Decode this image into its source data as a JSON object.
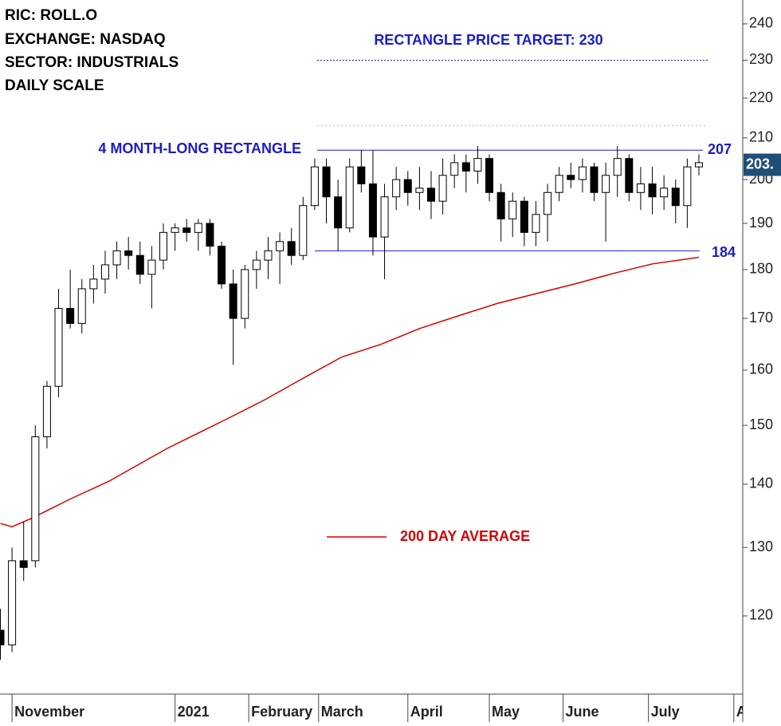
{
  "chart_data": {
    "type": "candlestick",
    "title_lines": [
      "RIC: ROLL.O",
      "EXCHANGE: NASDAQ",
      "SECTOR: INDUSTRIALS",
      "DAILY SCALE"
    ],
    "log_scale": true,
    "ylim": [
      109.5,
      246.8
    ],
    "yticks": [
      120,
      130,
      140,
      150,
      160,
      170,
      180,
      190,
      200,
      210,
      220,
      230,
      240
    ],
    "xlim": [
      -3.1,
      188.3
    ],
    "xticks": [
      {
        "value": 0,
        "label": "November"
      },
      {
        "value": 42,
        "label": "2021"
      },
      {
        "value": 61,
        "label": "February"
      },
      {
        "value": 79,
        "label": "March"
      },
      {
        "value": 102,
        "label": "April"
      },
      {
        "value": 123,
        "label": "May"
      },
      {
        "value": 142,
        "label": "June"
      },
      {
        "value": 164,
        "label": "July"
      },
      {
        "value": 186,
        "label": "Au"
      }
    ],
    "up_color": "#ffffff",
    "down_color": "#000000",
    "candles": {
      "x": [
        -3,
        0,
        3,
        6,
        9,
        12,
        15,
        18,
        21,
        24,
        27,
        30,
        33,
        36,
        39,
        42,
        45,
        48,
        51,
        54,
        57,
        60,
        63,
        66,
        69,
        72,
        75,
        78,
        81,
        84,
        87,
        90,
        93,
        96,
        99,
        102,
        105,
        108,
        111,
        114,
        117,
        120,
        123,
        126,
        129,
        132,
        135,
        138,
        141,
        144,
        147,
        150,
        153,
        156,
        159,
        162,
        165,
        168,
        171,
        174,
        177
      ],
      "open": [
        118,
        116,
        128,
        128,
        148,
        157,
        172,
        169,
        176,
        178,
        181,
        184,
        183,
        179,
        182,
        188,
        189,
        188,
        190,
        185,
        177,
        170,
        180,
        182,
        184,
        186,
        183,
        194,
        203,
        196,
        189,
        203,
        199,
        187,
        196,
        200,
        197,
        198,
        195,
        201,
        204,
        202,
        205,
        197,
        191,
        195,
        188,
        192,
        197,
        201,
        200,
        203,
        197,
        201,
        205,
        197,
        199,
        196,
        198,
        194,
        203
      ],
      "high": [
        121,
        130,
        134,
        150,
        158,
        176,
        180,
        178,
        181,
        184,
        186,
        187,
        186,
        185,
        190,
        190,
        191,
        191,
        191,
        186,
        180,
        181,
        184,
        187,
        188,
        189,
        196,
        205,
        205,
        200,
        205,
        207,
        207,
        199,
        203,
        202,
        203,
        202,
        205,
        206,
        206,
        208,
        206,
        199,
        197,
        196,
        195,
        199,
        203,
        204,
        205,
        204,
        204,
        208,
        206,
        203,
        203,
        201,
        200,
        205,
        206
      ],
      "low": [
        114,
        115,
        125,
        127,
        146,
        155,
        168,
        167,
        173,
        175,
        178,
        180,
        177,
        172,
        180,
        184,
        186,
        184,
        183,
        176,
        161,
        168,
        176,
        178,
        177,
        181,
        182,
        193,
        190,
        184,
        188,
        197,
        183,
        178,
        193,
        194,
        193,
        191,
        192,
        198,
        197,
        199,
        195,
        186,
        187,
        185,
        185,
        186,
        195,
        198,
        197,
        195,
        186,
        196,
        195,
        193,
        192,
        193,
        190,
        189,
        201
      ],
      "close": [
        116,
        128,
        127,
        148,
        157,
        172,
        169,
        176,
        178,
        181,
        184,
        183,
        179,
        182,
        188,
        189,
        188,
        190,
        185,
        177,
        170,
        180,
        182,
        184,
        186,
        183,
        194,
        203,
        196,
        189,
        203,
        199,
        187,
        196,
        200,
        197,
        198,
        195,
        201,
        204,
        202,
        205,
        197,
        191,
        195,
        188,
        192,
        197,
        201,
        200,
        203,
        197,
        201,
        205,
        197,
        199,
        196,
        198,
        194,
        203,
        204
      ]
    },
    "moving_average": {
      "name": "200 DAY AVERAGE",
      "color": "#d40000",
      "x": [
        -3,
        0,
        5,
        15,
        25,
        40,
        55,
        65,
        75,
        85,
        95,
        105,
        115,
        125,
        135,
        145,
        155,
        165,
        177
      ],
      "values": [
        133.7,
        133.2,
        134.5,
        137.6,
        140.5,
        146,
        151,
        154.5,
        158.5,
        162.5,
        164.9,
        168,
        170.5,
        173,
        175,
        177,
        179.2,
        181.2,
        182.6
      ]
    },
    "rectangle": {
      "label": "4 MONTH-LONG RECTANGLE",
      "top": 207,
      "bottom": 184,
      "color": "#1c1cc8"
    },
    "price_target": {
      "label": "RECTANGLE PRICE TARGET: 230",
      "value": 230
    },
    "reference_line": 213,
    "last_price": {
      "value": 203.5,
      "label": "203.",
      "color": "#1f4e79"
    }
  }
}
